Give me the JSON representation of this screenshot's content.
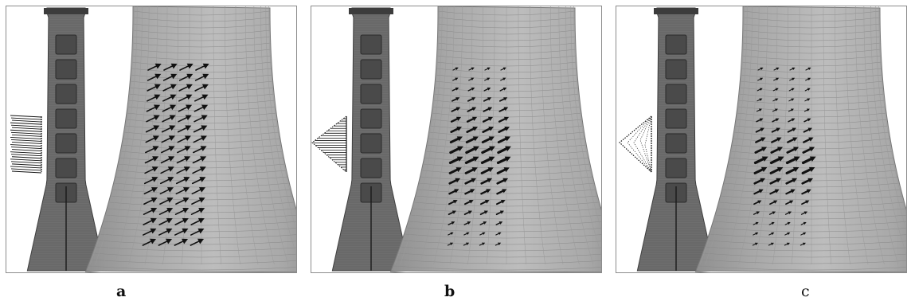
{
  "figure": {
    "panels": [
      {
        "id": "a",
        "caption": "a",
        "load_profile": "uniform"
      },
      {
        "id": "b",
        "caption": "b",
        "load_profile": "triangular"
      },
      {
        "id": "c",
        "caption": "c",
        "load_profile": "diamond"
      }
    ],
    "colors": {
      "shell_light": "#bdbdbd",
      "shell_mid": "#a8a8a8",
      "shell_dark": "#8f8f8f",
      "section_fill": "#6e6e6e",
      "section_dark": "#3c3c3c",
      "arrow": "#111111",
      "frame": "#8c8c8c"
    }
  }
}
